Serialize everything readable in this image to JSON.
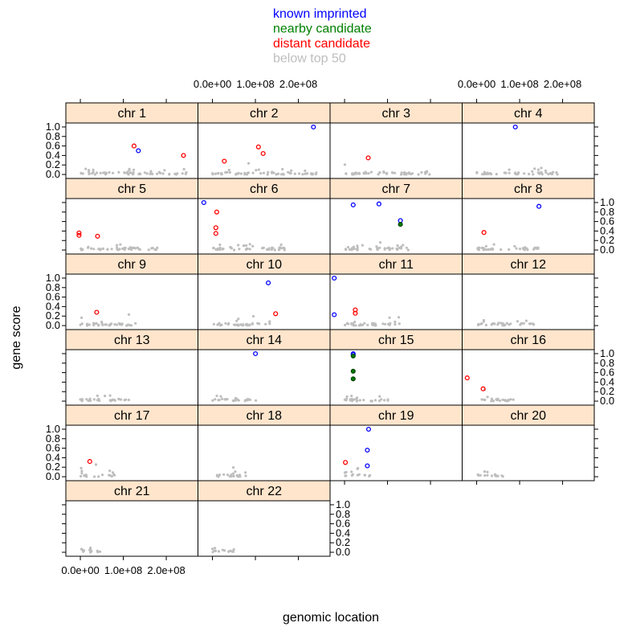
{
  "chart_data": {
    "type": "scatter",
    "layout": "lattice-panels-by-chromosome",
    "xlabel": "genomic location",
    "ylabel": "gene score",
    "xlim": [
      -30000000.0,
      270000000.0
    ],
    "ylim": [
      -0.05,
      1.05
    ],
    "x_ticks": [
      0,
      100000000.0,
      200000000.0
    ],
    "x_tick_labels": [
      "0.0e+00",
      "1.0e+08",
      "2.0e+08"
    ],
    "y_ticks": [
      0,
      0.2,
      0.4,
      0.6,
      0.8,
      1.0
    ],
    "y_tick_labels": [
      "0.0",
      "0.2",
      "0.4",
      "0.6",
      "0.8",
      "1.0"
    ],
    "legend": {
      "position": "top",
      "items": [
        {
          "key": "known",
          "label": "known imprinted",
          "color": "#0000ff"
        },
        {
          "key": "nearby",
          "label": "nearby candidate",
          "color": "#008000"
        },
        {
          "key": "distant",
          "label": "distant candidate",
          "color": "#ff0000"
        },
        {
          "key": "below",
          "label": "below top 50",
          "color": "#bebebe"
        }
      ]
    },
    "strip_color": "#ffe5cc",
    "panels": [
      {
        "chr": "chr 1",
        "length": 249000000.0,
        "points": [
          {
            "x": 135000000.0,
            "y": 0.5,
            "type": "known"
          },
          {
            "x": 125000000.0,
            "y": 0.6,
            "type": "distant"
          },
          {
            "x": 240000000.0,
            "y": 0.4,
            "type": "distant"
          }
        ]
      },
      {
        "chr": "chr 2",
        "length": 243000000.0,
        "points": [
          {
            "x": 235000000.0,
            "y": 1.0,
            "type": "known"
          },
          {
            "x": 27500000.0,
            "y": 0.28,
            "type": "distant"
          },
          {
            "x": 107000000.0,
            "y": 0.58,
            "type": "distant"
          },
          {
            "x": 118000000.0,
            "y": 0.44,
            "type": "distant"
          }
        ]
      },
      {
        "chr": "chr 3",
        "length": 198000000.0,
        "points": [
          {
            "x": 55000000.0,
            "y": 0.35,
            "type": "distant"
          }
        ]
      },
      {
        "chr": "chr 4",
        "length": 191000000.0,
        "points": [
          {
            "x": 90000000.0,
            "y": 1.0,
            "type": "known"
          }
        ]
      },
      {
        "chr": "chr 5",
        "length": 181000000.0,
        "points": [
          {
            "x": -3000000.0,
            "y": 0.36,
            "type": "distant"
          },
          {
            "x": -3000000.0,
            "y": 0.31,
            "type": "distant"
          },
          {
            "x": 40000000.0,
            "y": 0.29,
            "type": "distant"
          }
        ]
      },
      {
        "chr": "chr 6",
        "length": 171000000.0,
        "points": [
          {
            "x": -20000000.0,
            "y": 1.0,
            "type": "known"
          },
          {
            "x": 10000000.0,
            "y": 0.8,
            "type": "distant"
          },
          {
            "x": 8000000.0,
            "y": 0.47,
            "type": "distant"
          },
          {
            "x": 8000000.0,
            "y": 0.35,
            "type": "distant"
          }
        ]
      },
      {
        "chr": "chr 7",
        "length": 159000000.0,
        "points": [
          {
            "x": 20000000.0,
            "y": 0.95,
            "type": "known"
          },
          {
            "x": 80000000.0,
            "y": 0.97,
            "type": "known"
          },
          {
            "x": 130000000.0,
            "y": 0.62,
            "type": "known"
          },
          {
            "x": 130000000.0,
            "y": 0.54,
            "type": "nearby"
          }
        ]
      },
      {
        "chr": "chr 8",
        "length": 145000000.0,
        "points": [
          {
            "x": 145000000.0,
            "y": 0.92,
            "type": "known"
          },
          {
            "x": 17000000.0,
            "y": 0.37,
            "type": "distant"
          }
        ]
      },
      {
        "chr": "chr 9",
        "length": 138000000.0,
        "points": [
          {
            "x": 38000000.0,
            "y": 0.28,
            "type": "distant"
          }
        ]
      },
      {
        "chr": "chr 10",
        "length": 134000000.0,
        "points": [
          {
            "x": 130000000.0,
            "y": 0.9,
            "type": "known"
          },
          {
            "x": 147000000.0,
            "y": 0.25,
            "type": "distant"
          }
        ]
      },
      {
        "chr": "chr 11",
        "length": 135000000.0,
        "points": [
          {
            "x": -24000000.0,
            "y": 1.0,
            "type": "known"
          },
          {
            "x": -24000000.0,
            "y": 0.23,
            "type": "known"
          },
          {
            "x": 25000000.0,
            "y": 0.33,
            "type": "distant"
          },
          {
            "x": 25000000.0,
            "y": 0.26,
            "type": "distant"
          }
        ]
      },
      {
        "chr": "chr 12",
        "length": 133000000.0,
        "points": []
      },
      {
        "chr": "chr 13",
        "length": 114000000.0,
        "points": []
      },
      {
        "chr": "chr 14",
        "length": 107000000.0,
        "points": [
          {
            "x": 100000000.0,
            "y": 1.0,
            "type": "known"
          }
        ]
      },
      {
        "chr": "chr 15",
        "length": 102000000.0,
        "points": [
          {
            "x": 20000000.0,
            "y": 1.0,
            "type": "known"
          },
          {
            "x": 20000000.0,
            "y": 0.98,
            "type": "known"
          },
          {
            "x": 20000000.0,
            "y": 0.95,
            "type": "nearby"
          },
          {
            "x": 20000000.0,
            "y": 0.63,
            "type": "nearby"
          },
          {
            "x": 20000000.0,
            "y": 0.47,
            "type": "nearby"
          }
        ]
      },
      {
        "chr": "chr 16",
        "length": 90000000.0,
        "points": [
          {
            "x": -22000000.0,
            "y": 0.49,
            "type": "distant"
          },
          {
            "x": 15000000.0,
            "y": 0.26,
            "type": "distant"
          }
        ]
      },
      {
        "chr": "chr 17",
        "length": 83000000.0,
        "points": [
          {
            "x": 22000000.0,
            "y": 0.32,
            "type": "distant"
          }
        ]
      },
      {
        "chr": "chr 18",
        "length": 80000000.0,
        "points": []
      },
      {
        "chr": "chr 19",
        "length": 59000000.0,
        "points": [
          {
            "x": 56000000.0,
            "y": 1.0,
            "type": "known"
          },
          {
            "x": 53000000.0,
            "y": 0.56,
            "type": "known"
          },
          {
            "x": 53000000.0,
            "y": 0.23,
            "type": "known"
          },
          {
            "x": 2000000.0,
            "y": 0.3,
            "type": "distant"
          }
        ]
      },
      {
        "chr": "chr 20",
        "length": 64000000.0,
        "points": []
      },
      {
        "chr": "chr 21",
        "length": 47000000.0,
        "points": []
      },
      {
        "chr": "chr 22",
        "length": 51000000.0,
        "points": []
      }
    ]
  }
}
